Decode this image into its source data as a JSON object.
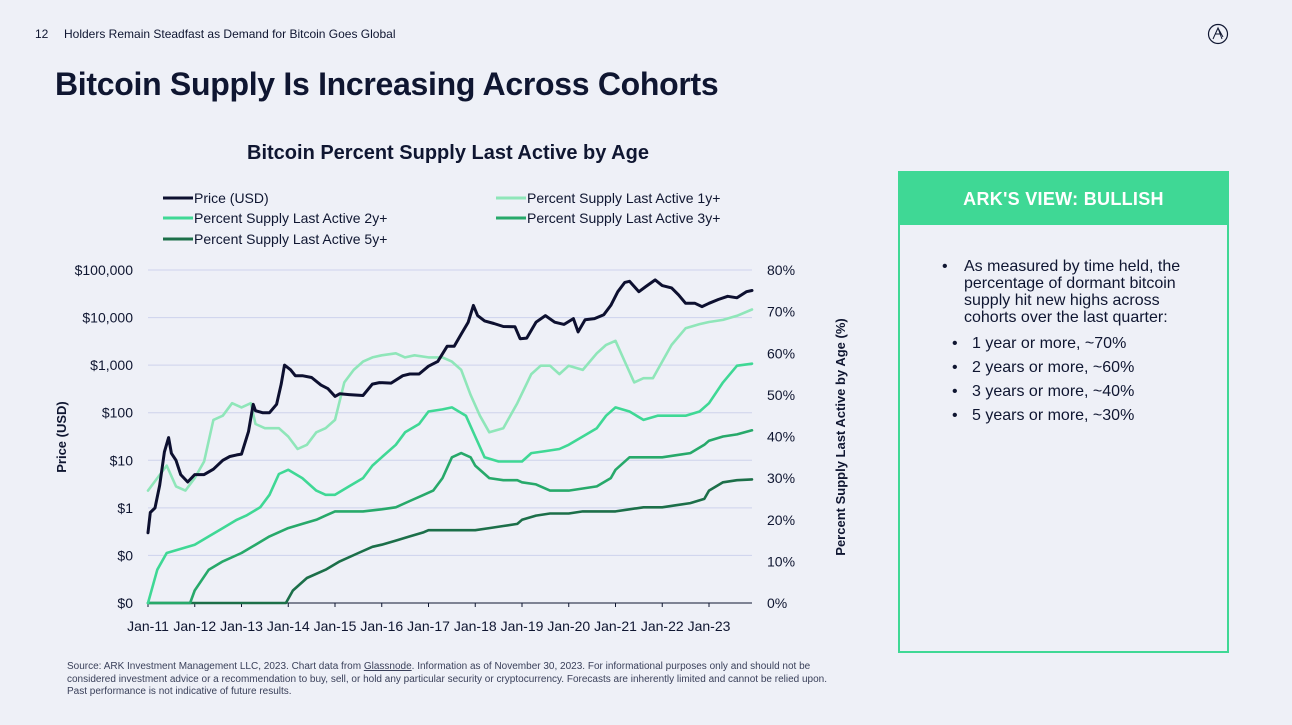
{
  "header": {
    "page_number": "12",
    "section_title": "Holders Remain Steadfast as Demand for Bitcoin Goes Global",
    "logo_icon": "ark-logo-icon"
  },
  "slide_title": "Bitcoin Supply Is Increasing Across Cohorts",
  "view_panel": {
    "heading": "ARK'S VIEW: BULLISH",
    "main_point": "As measured by time held, the percentage of dormant bitcoin supply hit new highs across cohorts over the last quarter:",
    "sub_points": [
      "1 year or more, ~70%",
      "2 years or more, ~60%",
      "3 years or more, ~40%",
      "5 years or more, ~30%"
    ]
  },
  "source": {
    "prefix": "Source: ARK Investment Management LLC, 2023. Chart data from ",
    "link_text": "Glassnode",
    "suffix": ". Information as of November 30, 2023. For informational purposes only and should not be considered investment advice or a recommendation to buy, sell, or hold any particular security or cryptocurrency. Forecasts are inherently limited and cannot be relied upon. Past performance is not indicative of future results."
  },
  "chart_data": {
    "type": "line",
    "title": "Bitcoin Percent Supply Last Active by Age",
    "ylabel_left": "Price (USD)",
    "ylabel_right": "Percent Supply Last Active by Age (%)",
    "x_tick_labels": [
      "Jan-11",
      "Jan-12",
      "Jan-13",
      "Jan-14",
      "Jan-15",
      "Jan-16",
      "Jan-17",
      "Jan-18",
      "Jan-19",
      "Jan-20",
      "Jan-21",
      "Jan-22",
      "Jan-23"
    ],
    "x_range": [
      2011.0,
      2023.92
    ],
    "y_left": {
      "scale": "log",
      "range": [
        0.01,
        100000
      ],
      "tick_values": [
        0.01,
        0.1,
        1,
        10,
        100,
        1000,
        10000,
        100000
      ],
      "tick_labels": [
        "$0",
        "$0",
        "$1",
        "$10",
        "$100",
        "$1,000",
        "$10,000",
        "$100,000"
      ]
    },
    "y_right": {
      "scale": "linear",
      "range": [
        0,
        80
      ],
      "tick_values": [
        0,
        10,
        20,
        30,
        40,
        50,
        60,
        70,
        80
      ],
      "tick_labels": [
        "0%",
        "10%",
        "20%",
        "30%",
        "40%",
        "50%",
        "60%",
        "70%",
        "80%"
      ]
    },
    "grid": true,
    "legend_placement": "top",
    "series": [
      {
        "name": "Price (USD)",
        "axis": "left",
        "color": "#0d1030",
        "x": [
          2011.0,
          2011.05,
          2011.15,
          2011.25,
          2011.35,
          2011.44,
          2011.5,
          2011.6,
          2011.7,
          2011.85,
          2012.0,
          2012.2,
          2012.4,
          2012.6,
          2012.75,
          2012.9,
          2013.0,
          2013.15,
          2013.25,
          2013.3,
          2013.45,
          2013.6,
          2013.75,
          2013.85,
          2013.92,
          2014.05,
          2014.15,
          2014.3,
          2014.5,
          2014.7,
          2014.85,
          2015.0,
          2015.1,
          2015.3,
          2015.6,
          2015.8,
          2015.95,
          2016.2,
          2016.45,
          2016.6,
          2016.8,
          2017.0,
          2017.2,
          2017.4,
          2017.55,
          2017.7,
          2017.85,
          2017.96,
          2018.05,
          2018.2,
          2018.4,
          2018.6,
          2018.85,
          2018.96,
          2019.1,
          2019.3,
          2019.5,
          2019.7,
          2019.9,
          2020.1,
          2020.2,
          2020.35,
          2020.55,
          2020.75,
          2020.9,
          2021.05,
          2021.2,
          2021.3,
          2021.5,
          2021.65,
          2021.85,
          2022.0,
          2022.2,
          2022.35,
          2022.5,
          2022.7,
          2022.85,
          2023.0,
          2023.2,
          2023.4,
          2023.6,
          2023.8,
          2023.92
        ],
        "y": [
          0.3,
          0.8,
          1.0,
          3.0,
          15.0,
          30.0,
          14.0,
          10.0,
          5.0,
          3.5,
          5.0,
          5.0,
          6.5,
          10.0,
          12.0,
          13.0,
          13.5,
          40.0,
          150.0,
          110.0,
          100.0,
          100.0,
          150.0,
          400.0,
          1000.0,
          800.0,
          600.0,
          600.0,
          550.0,
          380.0,
          320.0,
          220.0,
          250.0,
          240.0,
          230.0,
          400.0,
          430.0,
          420.0,
          600.0,
          650.0,
          650.0,
          950.0,
          1200.0,
          2500.0,
          2500.0,
          4500.0,
          8000.0,
          18000.0,
          11000.0,
          8500.0,
          7500.0,
          6500.0,
          6400.0,
          3600.0,
          3700.0,
          8000.0,
          11000.0,
          8000.0,
          7200.0,
          9500.0,
          5000.0,
          9000.0,
          9500.0,
          11500.0,
          18000.0,
          35000.0,
          55000.0,
          58000.0,
          35000.0,
          45000.0,
          62000.0,
          47000.0,
          42000.0,
          30000.0,
          20000.0,
          20000.0,
          17000.0,
          20000.0,
          24000.0,
          28000.0,
          26000.0,
          35000.0,
          37000.0
        ]
      },
      {
        "name": "Percent Supply Last Active 1y+",
        "axis": "right",
        "color": "#8fe6b9",
        "x": [
          2011.0,
          2011.2,
          2011.4,
          2011.6,
          2011.8,
          2012.0,
          2012.2,
          2012.4,
          2012.6,
          2012.8,
          2013.0,
          2013.2,
          2013.3,
          2013.5,
          2013.8,
          2014.0,
          2014.2,
          2014.4,
          2014.6,
          2014.8,
          2015.0,
          2015.2,
          2015.4,
          2015.6,
          2015.8,
          2016.0,
          2016.3,
          2016.5,
          2016.7,
          2017.0,
          2017.3,
          2017.5,
          2017.7,
          2017.9,
          2018.1,
          2018.3,
          2018.6,
          2018.9,
          2019.2,
          2019.4,
          2019.6,
          2019.8,
          2020.0,
          2020.3,
          2020.6,
          2020.8,
          2021.0,
          2021.2,
          2021.4,
          2021.6,
          2021.8,
          2022.0,
          2022.2,
          2022.5,
          2022.8,
          2023.0,
          2023.3,
          2023.6,
          2023.92
        ],
        "y": [
          27.0,
          30.0,
          33.0,
          28.0,
          27.0,
          30.0,
          34.0,
          44.0,
          45.0,
          48.0,
          47.0,
          48.0,
          43.0,
          42.0,
          42.0,
          40.0,
          37.0,
          38.0,
          41.0,
          42.0,
          44.0,
          53.0,
          56.0,
          58.0,
          59.0,
          59.5,
          60.0,
          59.0,
          59.5,
          59.0,
          59.0,
          58.0,
          56.0,
          50.0,
          45.0,
          41.0,
          42.0,
          48.0,
          55.0,
          57.0,
          57.0,
          55.0,
          57.0,
          56.0,
          60.0,
          62.0,
          63.0,
          58.0,
          53.0,
          54.0,
          54.0,
          58.0,
          62.0,
          66.0,
          67.0,
          67.5,
          68.0,
          69.0,
          70.5
        ]
      },
      {
        "name": "Percent Supply Last Active 2y+",
        "axis": "right",
        "color": "#3fd895",
        "x": [
          2011.0,
          2011.2,
          2011.4,
          2011.7,
          2012.0,
          2012.3,
          2012.6,
          2012.9,
          2013.1,
          2013.4,
          2013.6,
          2013.8,
          2014.0,
          2014.3,
          2014.6,
          2014.8,
          2015.0,
          2015.3,
          2015.6,
          2015.8,
          2016.0,
          2016.3,
          2016.5,
          2016.8,
          2017.0,
          2017.3,
          2017.5,
          2017.8,
          2018.0,
          2018.2,
          2018.5,
          2018.8,
          2019.0,
          2019.2,
          2019.5,
          2019.8,
          2020.0,
          2020.3,
          2020.6,
          2020.8,
          2021.0,
          2021.3,
          2021.6,
          2021.9,
          2022.2,
          2022.5,
          2022.8,
          2023.0,
          2023.3,
          2023.6,
          2023.92
        ],
        "y": [
          0.0,
          8.0,
          12.0,
          13.0,
          14.0,
          16.0,
          18.0,
          20.0,
          21.0,
          23.0,
          26.0,
          31.0,
          32.0,
          30.0,
          27.0,
          26.0,
          26.0,
          28.0,
          30.0,
          33.0,
          35.0,
          38.0,
          41.0,
          43.0,
          46.0,
          46.5,
          47.0,
          45.0,
          40.0,
          35.0,
          34.0,
          34.0,
          34.0,
          36.0,
          36.5,
          37.0,
          38.0,
          40.0,
          42.0,
          45.0,
          47.0,
          46.0,
          44.0,
          45.0,
          45.0,
          45.0,
          46.0,
          48.0,
          53.0,
          57.0,
          57.5
        ]
      },
      {
        "name": "Percent Supply Last Active 3y+",
        "axis": "right",
        "color": "#27a96a",
        "x": [
          2011.0,
          2011.9,
          2012.0,
          2012.3,
          2012.6,
          2013.0,
          2013.3,
          2013.6,
          2014.0,
          2014.3,
          2014.6,
          2014.8,
          2015.0,
          2015.3,
          2015.6,
          2016.0,
          2016.3,
          2016.6,
          2016.9,
          2017.1,
          2017.3,
          2017.5,
          2017.7,
          2017.9,
          2018.0,
          2018.3,
          2018.6,
          2018.9,
          2019.0,
          2019.3,
          2019.6,
          2019.9,
          2020.0,
          2020.3,
          2020.6,
          2020.9,
          2021.0,
          2021.3,
          2021.6,
          2021.9,
          2022.0,
          2022.3,
          2022.6,
          2022.9,
          2023.0,
          2023.3,
          2023.6,
          2023.92
        ],
        "y": [
          0.0,
          0.0,
          3.0,
          8.0,
          10.0,
          12.0,
          14.0,
          16.0,
          18.0,
          19.0,
          20.0,
          21.0,
          22.0,
          22.0,
          22.0,
          22.5,
          23.0,
          24.5,
          26.0,
          27.0,
          30.0,
          35.0,
          36.0,
          35.0,
          33.0,
          30.0,
          29.5,
          29.5,
          29.0,
          28.5,
          27.0,
          27.0,
          27.0,
          27.5,
          28.0,
          30.0,
          32.0,
          35.0,
          35.0,
          35.0,
          35.0,
          35.5,
          36.0,
          38.0,
          39.0,
          40.0,
          40.5,
          41.5
        ]
      },
      {
        "name": "Percent Supply Last Active 5y+",
        "axis": "right",
        "color": "#1c6f49",
        "x": [
          2011.0,
          2013.95,
          2014.1,
          2014.4,
          2014.8,
          2015.1,
          2015.5,
          2015.8,
          2016.0,
          2016.3,
          2016.6,
          2016.9,
          2017.0,
          2017.3,
          2017.6,
          2017.9,
          2018.0,
          2018.3,
          2018.6,
          2018.9,
          2019.0,
          2019.3,
          2019.6,
          2019.9,
          2020.0,
          2020.3,
          2020.6,
          2021.0,
          2021.3,
          2021.6,
          2021.9,
          2022.0,
          2022.3,
          2022.6,
          2022.9,
          2023.0,
          2023.3,
          2023.6,
          2023.92
        ],
        "y": [
          0.0,
          0.0,
          3.0,
          6.0,
          8.0,
          10.0,
          12.0,
          13.5,
          14.0,
          15.0,
          16.0,
          17.0,
          17.5,
          17.5,
          17.5,
          17.5,
          17.5,
          18.0,
          18.5,
          19.0,
          20.0,
          21.0,
          21.5,
          21.5,
          21.5,
          22.0,
          22.0,
          22.0,
          22.5,
          23.0,
          23.0,
          23.0,
          23.5,
          24.0,
          25.0,
          27.0,
          29.0,
          29.5,
          29.7
        ]
      }
    ]
  }
}
